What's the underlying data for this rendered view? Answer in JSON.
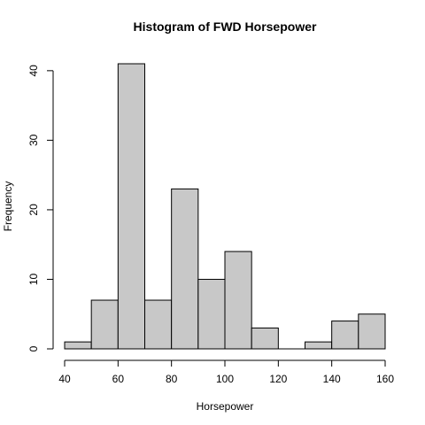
{
  "chart_data": {
    "type": "bar",
    "title": "Histogram of FWD Horsepower",
    "xlabel": "Horsepower",
    "ylabel": "Frequency",
    "bins": [
      {
        "start": 40,
        "end": 50,
        "count": 1
      },
      {
        "start": 50,
        "end": 60,
        "count": 7
      },
      {
        "start": 60,
        "end": 70,
        "count": 41
      },
      {
        "start": 70,
        "end": 80,
        "count": 7
      },
      {
        "start": 80,
        "end": 90,
        "count": 23
      },
      {
        "start": 90,
        "end": 100,
        "count": 10
      },
      {
        "start": 100,
        "end": 110,
        "count": 14
      },
      {
        "start": 110,
        "end": 120,
        "count": 3
      },
      {
        "start": 120,
        "end": 130,
        "count": 0
      },
      {
        "start": 130,
        "end": 140,
        "count": 1
      },
      {
        "start": 140,
        "end": 150,
        "count": 4
      },
      {
        "start": 150,
        "end": 160,
        "count": 5
      }
    ],
    "xlim": [
      40,
      160
    ],
    "ylim": [
      0,
      41
    ],
    "x_ticks": [
      40,
      60,
      80,
      100,
      120,
      140,
      160
    ],
    "y_ticks": [
      0,
      10,
      20,
      30,
      40
    ],
    "grid": false,
    "bar_color": "#c8c8c8",
    "edge_color": "#000000"
  }
}
